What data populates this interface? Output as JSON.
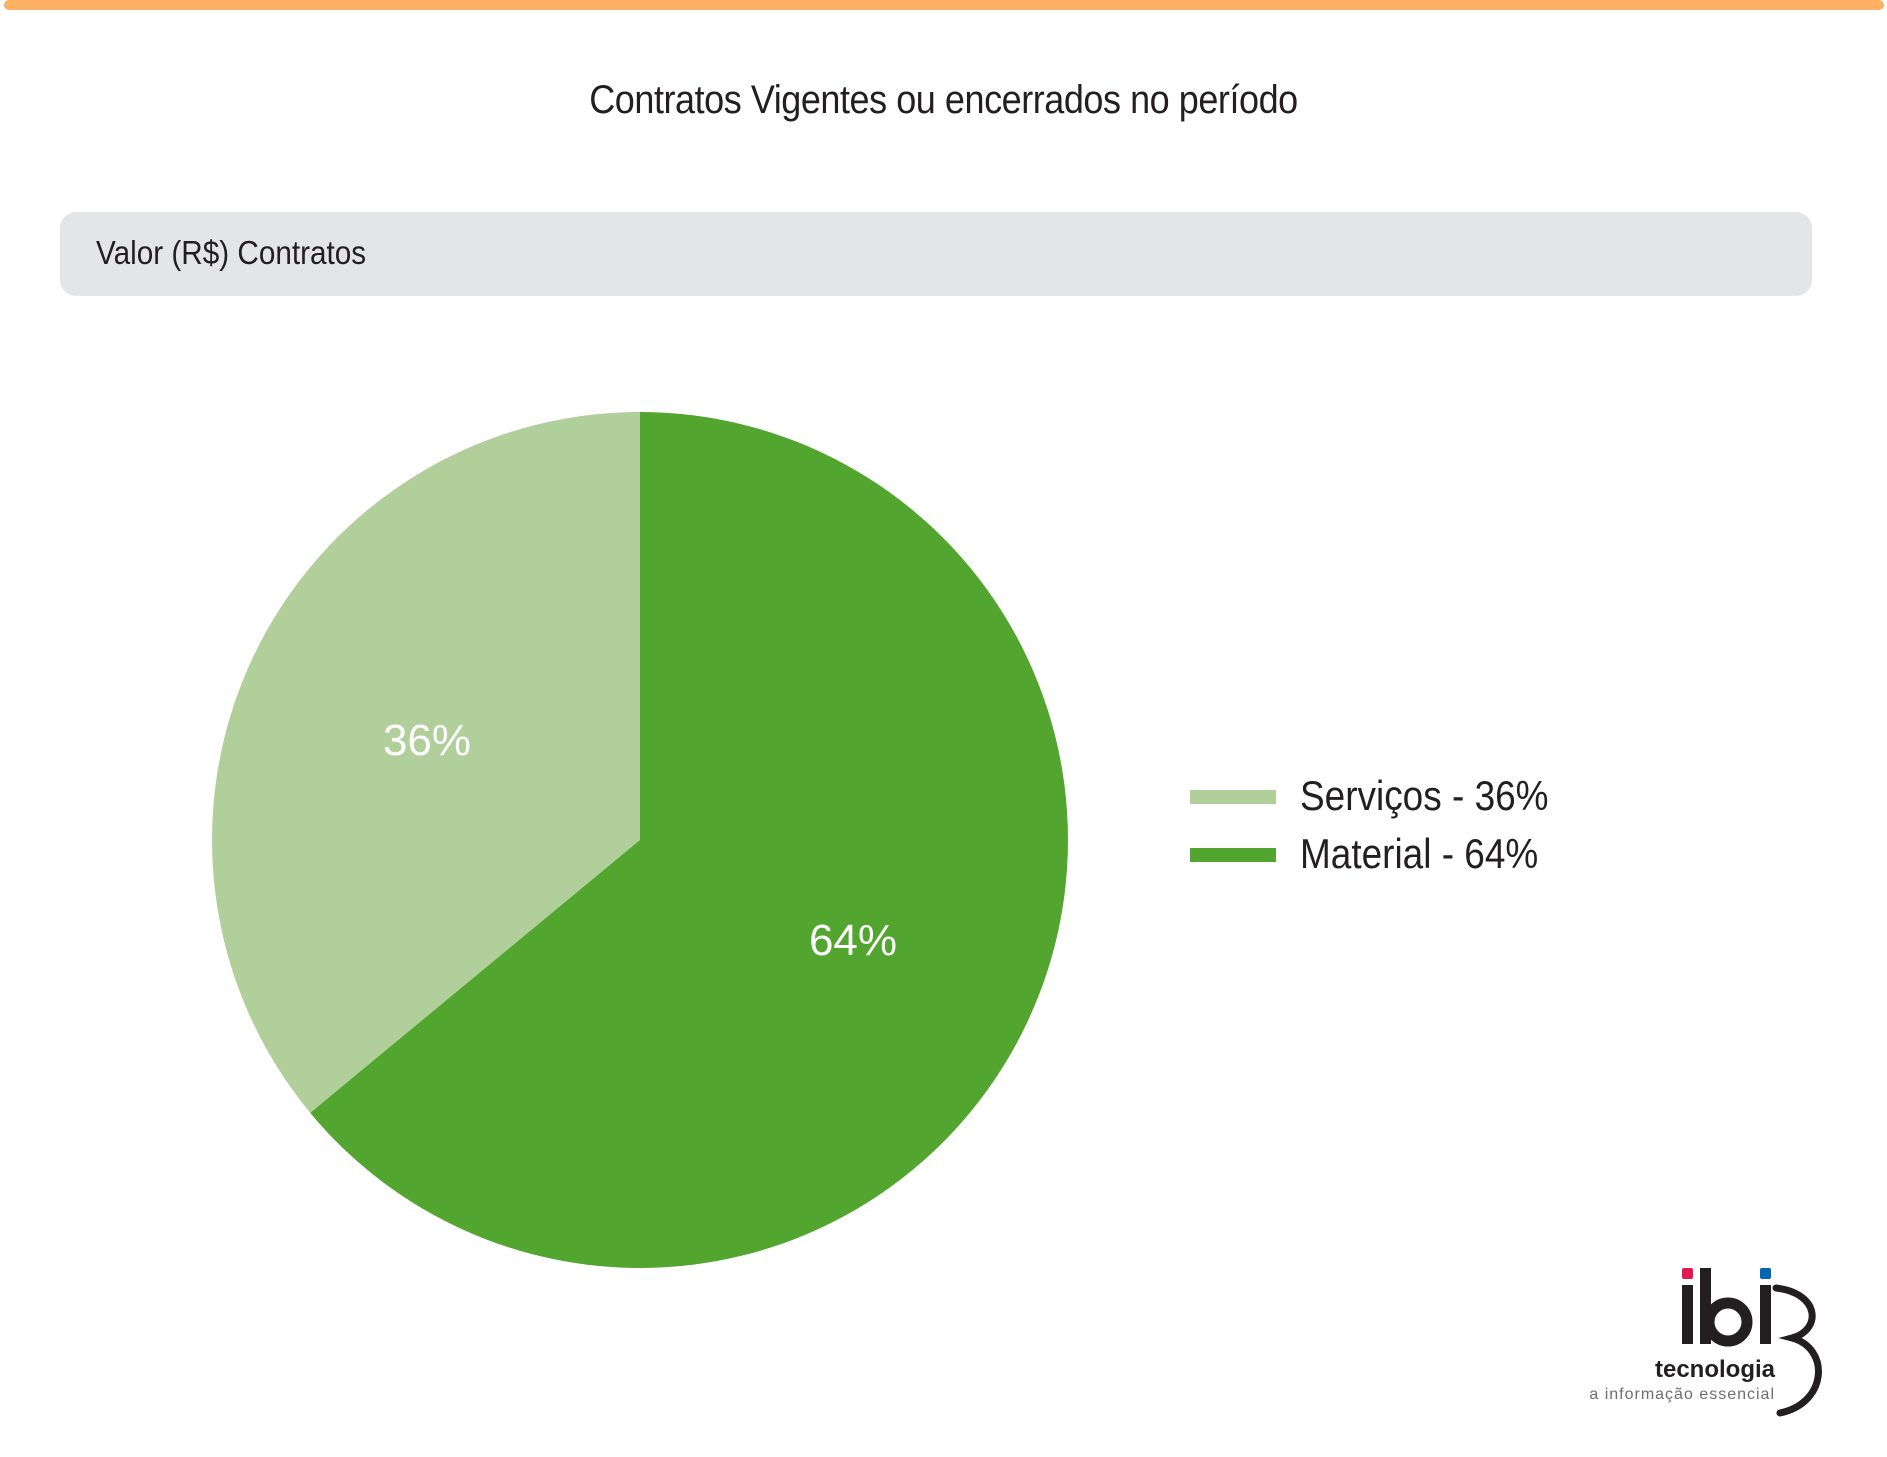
{
  "colors": {
    "accent_rule": "#fbb063",
    "section_bg": "#e4e5e7",
    "servicos": "#b1cf9b",
    "material": "#52a52e",
    "logo_red": "#e1194f",
    "logo_blue": "#0067b1"
  },
  "header": {
    "title": "Contratos Vigentes ou encerrados no período"
  },
  "section": {
    "label": "Valor (R$) Contratos"
  },
  "chart_data": {
    "type": "pie",
    "title": "Contratos Vigentes ou encerrados no período",
    "subtitle": "Valor (R$) Contratos",
    "legend_position": "right",
    "slices": [
      {
        "name": "Serviços",
        "value": 36,
        "label": "36%",
        "legend": "Serviços - 36%",
        "color": "#b1cf9b"
      },
      {
        "name": "Material",
        "value": 64,
        "label": "64%",
        "legend": "Material - 64%",
        "color": "#52a52e"
      }
    ]
  },
  "logo": {
    "brand": "ibi",
    "sub": "tecnologia",
    "tagline": "a informação essencial"
  }
}
